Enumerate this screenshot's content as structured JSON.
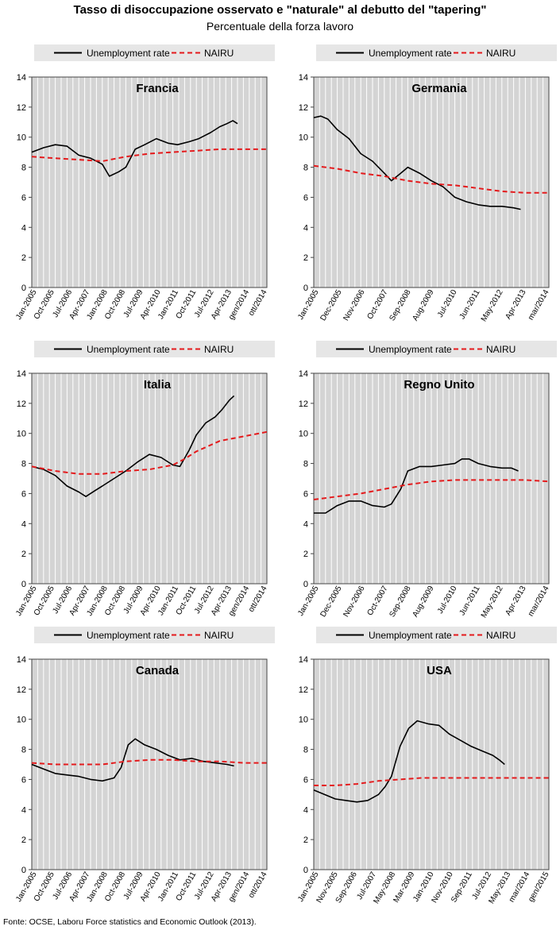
{
  "header": {
    "title": "Tasso di disoccupazione osservato e \"naturale\" al debutto del \"tapering\"",
    "subtitle": "Percentuale della forza lavoro"
  },
  "source": "Fonte: OCSE, Laboru Force statistics and Economic Outlook (2013).",
  "legend": {
    "series1": "Unemployment rate",
    "series2": "NAIRU"
  },
  "colors": {
    "unemployment": "#000000",
    "nairu": "#e41a1c",
    "plot_bg": "#d4d4d4",
    "legend_bg": "#e6e6e6"
  },
  "chart_data": [
    {
      "type": "line",
      "title": "Francia",
      "ylim": [
        0,
        14
      ],
      "yticks": [
        0,
        2,
        4,
        6,
        8,
        10,
        12,
        14
      ],
      "xlim": [
        2005.0,
        2015.0
      ],
      "xtick_labels": [
        "Jan-2005",
        "Oct-2005",
        "Jul-2006",
        "Apr-2007",
        "Jan-2008",
        "Oct-2008",
        "Jul-2009",
        "Apr-2010",
        "Jan-2011",
        "Oct-2011",
        "Jul-2012",
        "Apr-2013",
        "gen/2014",
        "ott/2014"
      ],
      "series": [
        {
          "name": "Unemployment rate",
          "x": [
            2005.0,
            2005.5,
            2006.0,
            2006.5,
            2007.0,
            2007.5,
            2008.0,
            2008.3,
            2008.7,
            2009.0,
            2009.4,
            2009.8,
            2010.3,
            2010.8,
            2011.2,
            2011.7,
            2012.1,
            2012.6,
            2013.0,
            2013.3,
            2013.55,
            2013.75
          ],
          "y": [
            9.0,
            9.3,
            9.5,
            9.4,
            8.8,
            8.6,
            8.2,
            7.4,
            7.7,
            8.0,
            9.2,
            9.5,
            9.9,
            9.6,
            9.5,
            9.7,
            9.9,
            10.3,
            10.7,
            10.9,
            11.1,
            10.9
          ]
        },
        {
          "name": "NAIRU",
          "x": [
            2005.0,
            2006.0,
            2007.0,
            2008.0,
            2009.0,
            2010.0,
            2011.0,
            2012.0,
            2013.0,
            2014.0,
            2015.0
          ],
          "y": [
            8.7,
            8.6,
            8.5,
            8.4,
            8.7,
            8.9,
            9.0,
            9.1,
            9.2,
            9.2,
            9.2
          ]
        }
      ]
    },
    {
      "type": "line",
      "title": "Germania",
      "ylim": [
        0,
        14
      ],
      "yticks": [
        0,
        2,
        4,
        6,
        8,
        10,
        12,
        14
      ],
      "xlim": [
        2005.0,
        2015.0
      ],
      "xtick_labels": [
        "Jan-2005",
        "Dec-2005",
        "Nov-2006",
        "Oct-2007",
        "Sep-2008",
        "Aug-2009",
        "Jul-2010",
        "Jun-2011",
        "May-2012",
        "Apr-2013",
        "mar/2014"
      ],
      "series": [
        {
          "name": "Unemployment rate",
          "x": [
            2005.0,
            2005.3,
            2005.6,
            2006.0,
            2006.5,
            2007.0,
            2007.5,
            2008.0,
            2008.3,
            2008.7,
            2009.0,
            2009.5,
            2010.0,
            2010.5,
            2011.0,
            2011.5,
            2012.0,
            2012.5,
            2013.0,
            2013.5,
            2013.8
          ],
          "y": [
            11.3,
            11.4,
            11.2,
            10.5,
            9.9,
            8.9,
            8.4,
            7.6,
            7.1,
            7.6,
            8.0,
            7.6,
            7.1,
            6.7,
            6.0,
            5.7,
            5.5,
            5.4,
            5.4,
            5.3,
            5.2
          ]
        },
        {
          "name": "NAIRU",
          "x": [
            2005.0,
            2006.0,
            2007.0,
            2008.0,
            2009.0,
            2010.0,
            2011.0,
            2012.0,
            2013.0,
            2014.0,
            2015.0
          ],
          "y": [
            8.1,
            7.9,
            7.6,
            7.4,
            7.1,
            6.9,
            6.8,
            6.6,
            6.4,
            6.3,
            6.3
          ]
        }
      ]
    },
    {
      "type": "line",
      "title": "Italia",
      "ylim": [
        0,
        14
      ],
      "yticks": [
        0,
        2,
        4,
        6,
        8,
        10,
        12,
        14
      ],
      "xlim": [
        2005.0,
        2015.0
      ],
      "xtick_labels": [
        "Jan-2005",
        "Oct-2005",
        "Jul-2006",
        "Apr-2007",
        "Jan-2008",
        "Oct-2008",
        "Jul-2009",
        "Apr-2010",
        "Jan-2011",
        "Oct-2011",
        "Jul-2012",
        "Apr-2013",
        "gen/2014",
        "ott/2014"
      ],
      "series": [
        {
          "name": "Unemployment rate",
          "x": [
            2005.0,
            2005.5,
            2006.0,
            2006.5,
            2007.0,
            2007.3,
            2007.7,
            2008.0,
            2008.5,
            2009.0,
            2009.5,
            2010.0,
            2010.5,
            2011.0,
            2011.3,
            2011.7,
            2012.0,
            2012.4,
            2012.8,
            2013.1,
            2013.4,
            2013.6
          ],
          "y": [
            7.8,
            7.6,
            7.2,
            6.5,
            6.1,
            5.8,
            6.2,
            6.5,
            7.0,
            7.5,
            8.1,
            8.6,
            8.4,
            7.9,
            7.8,
            8.9,
            9.9,
            10.7,
            11.1,
            11.6,
            12.2,
            12.5
          ]
        },
        {
          "name": "NAIRU",
          "x": [
            2005.0,
            2006.0,
            2007.0,
            2008.0,
            2009.0,
            2010.0,
            2011.0,
            2011.5,
            2012.0,
            2013.0,
            2014.0,
            2015.0
          ],
          "y": [
            7.8,
            7.5,
            7.3,
            7.3,
            7.5,
            7.6,
            7.9,
            8.3,
            8.8,
            9.5,
            9.8,
            10.1
          ]
        }
      ]
    },
    {
      "type": "line",
      "title": "Regno Unito",
      "ylim": [
        0,
        14
      ],
      "yticks": [
        0,
        2,
        4,
        6,
        8,
        10,
        12,
        14
      ],
      "xlim": [
        2005.0,
        2015.0
      ],
      "xtick_labels": [
        "Jan-2005",
        "Dec-2005",
        "Nov-2006",
        "Oct-2007",
        "Sep-2008",
        "Aug-2009",
        "Jul-2010",
        "Jun-2011",
        "May-2012",
        "Apr-2013",
        "mar/2014"
      ],
      "series": [
        {
          "name": "Unemployment rate",
          "x": [
            2005.0,
            2005.5,
            2006.0,
            2006.5,
            2007.0,
            2007.5,
            2008.0,
            2008.3,
            2008.7,
            2009.0,
            2009.5,
            2010.0,
            2010.5,
            2011.0,
            2011.3,
            2011.6,
            2012.0,
            2012.5,
            2013.0,
            2013.4,
            2013.7
          ],
          "y": [
            4.7,
            4.7,
            5.2,
            5.5,
            5.5,
            5.2,
            5.1,
            5.3,
            6.3,
            7.5,
            7.8,
            7.8,
            7.9,
            8.0,
            8.3,
            8.3,
            8.0,
            7.8,
            7.7,
            7.7,
            7.5
          ]
        },
        {
          "name": "NAIRU",
          "x": [
            2005.0,
            2006.0,
            2007.0,
            2008.0,
            2009.0,
            2010.0,
            2011.0,
            2012.0,
            2013.0,
            2014.0,
            2015.0
          ],
          "y": [
            5.6,
            5.8,
            6.0,
            6.3,
            6.6,
            6.8,
            6.9,
            6.9,
            6.9,
            6.9,
            6.8
          ]
        }
      ]
    },
    {
      "type": "line",
      "title": "Canada",
      "ylim": [
        0,
        14
      ],
      "yticks": [
        0,
        2,
        4,
        6,
        8,
        10,
        12,
        14
      ],
      "xlim": [
        2005.0,
        2015.0
      ],
      "xtick_labels": [
        "Jan-2005",
        "Oct-2005",
        "Jul-2006",
        "Apr-2007",
        "Jan-2008",
        "Oct-2008",
        "Jul-2009",
        "Apr-2010",
        "Jan-2011",
        "Oct-2011",
        "Jul-2012",
        "Apr-2013",
        "gen/2014",
        "ott/2014"
      ],
      "series": [
        {
          "name": "Unemployment rate",
          "x": [
            2005.0,
            2005.5,
            2006.0,
            2006.5,
            2007.0,
            2007.5,
            2008.0,
            2008.5,
            2008.8,
            2009.1,
            2009.4,
            2009.8,
            2010.3,
            2010.8,
            2011.3,
            2011.8,
            2012.3,
            2012.8,
            2013.3,
            2013.6
          ],
          "y": [
            7.0,
            6.7,
            6.4,
            6.3,
            6.2,
            6.0,
            5.9,
            6.1,
            6.8,
            8.3,
            8.7,
            8.3,
            8.0,
            7.6,
            7.3,
            7.4,
            7.2,
            7.1,
            7.0,
            6.9
          ]
        },
        {
          "name": "NAIRU",
          "x": [
            2005.0,
            2006.0,
            2007.0,
            2008.0,
            2009.0,
            2010.0,
            2011.0,
            2012.0,
            2013.0,
            2014.0,
            2015.0
          ],
          "y": [
            7.1,
            7.0,
            7.0,
            7.0,
            7.2,
            7.3,
            7.3,
            7.2,
            7.2,
            7.1,
            7.1
          ]
        }
      ]
    },
    {
      "type": "line",
      "title": "USA",
      "ylim": [
        0,
        14
      ],
      "yticks": [
        0,
        2,
        4,
        6,
        8,
        10,
        12,
        14
      ],
      "xlim": [
        2005.0,
        2015.9
      ],
      "xtick_labels": [
        "Jan-2005",
        "Nov-2005",
        "Sep-2006",
        "Jul-2007",
        "May-2008",
        "Mar-2009",
        "Jan-2010",
        "Nov-2010",
        "Sep-2011",
        "Jul-2012",
        "May-2013",
        "mar/2014",
        "gen/2015"
      ],
      "series": [
        {
          "name": "Unemployment rate",
          "x": [
            2005.0,
            2005.5,
            2006.0,
            2006.5,
            2007.0,
            2007.5,
            2008.0,
            2008.3,
            2008.6,
            2009.0,
            2009.4,
            2009.8,
            2010.3,
            2010.8,
            2011.3,
            2011.8,
            2012.3,
            2012.8,
            2013.3,
            2013.6,
            2013.85
          ],
          "y": [
            5.3,
            5.0,
            4.7,
            4.6,
            4.5,
            4.6,
            5.0,
            5.5,
            6.2,
            8.2,
            9.4,
            9.9,
            9.7,
            9.6,
            9.0,
            8.6,
            8.2,
            7.9,
            7.6,
            7.3,
            7.0
          ]
        },
        {
          "name": "NAIRU",
          "x": [
            2005.0,
            2006.0,
            2007.0,
            2008.0,
            2009.0,
            2010.0,
            2011.0,
            2012.0,
            2013.0,
            2014.0,
            2015.0,
            2015.9
          ],
          "y": [
            5.6,
            5.6,
            5.7,
            5.9,
            6.0,
            6.1,
            6.1,
            6.1,
            6.1,
            6.1,
            6.1,
            6.1
          ]
        }
      ]
    }
  ]
}
